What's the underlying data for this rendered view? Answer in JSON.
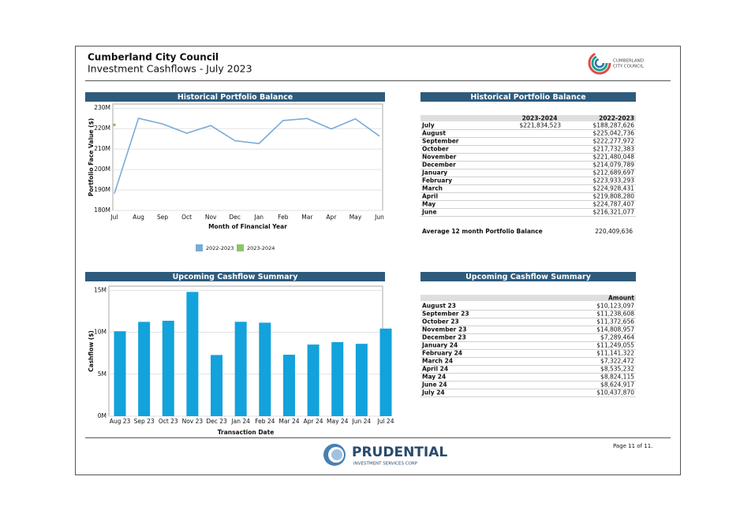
{
  "header": {
    "title": "Cumberland City Council",
    "subtitle": "Investment Cashflows - July 2023",
    "logo_line1": "CUMBERLAND",
    "logo_line2": "CITY COUNCIL"
  },
  "chart_data": [
    {
      "type": "line",
      "title": "Historical Portfolio Balance",
      "y_label": "Portfolio Face Value ($)",
      "x_label": "Month of Financial Year",
      "categories": [
        "Jul",
        "Aug",
        "Sep",
        "Oct",
        "Nov",
        "Dec",
        "Jan",
        "Feb",
        "Mar",
        "Apr",
        "May",
        "Jun"
      ],
      "series": [
        {
          "name": "2022-2023",
          "color": "#7aaad8",
          "values": [
            188287626,
            225042736,
            222277972,
            217732383,
            221480048,
            214079789,
            212689697,
            223933293,
            224928431,
            219808280,
            224787407,
            216321077
          ]
        },
        {
          "name": "2023-2024",
          "color": "#8cc46a",
          "values": [
            221834523,
            null,
            null,
            null,
            null,
            null,
            null,
            null,
            null,
            null,
            null,
            null
          ]
        }
      ],
      "ylim": [
        180000000,
        232000000
      ],
      "yticks": [
        {
          "value": 180000000,
          "label": "180M"
        },
        {
          "value": 190000000,
          "label": "190M"
        },
        {
          "value": 200000000,
          "label": "200M"
        },
        {
          "value": 210000000,
          "label": "210M"
        },
        {
          "value": 220000000,
          "label": "220M"
        },
        {
          "value": 230000000,
          "label": "230M"
        }
      ],
      "grid": true,
      "legend": "bottom"
    },
    {
      "type": "bar",
      "title": "Upcoming Cashflow Summary",
      "y_label": "Cashflow ($)",
      "x_label": "Transaction Date",
      "categories": [
        "Aug 23",
        "Sep 23",
        "Oct 23",
        "Nov 23",
        "Dec 23",
        "Jan 24",
        "Feb 24",
        "Mar 24",
        "Apr 24",
        "May 24",
        "Jun 24",
        "Jul 24"
      ],
      "values": [
        10123097,
        11238608,
        11372656,
        14808957,
        7289464,
        11249055,
        11141322,
        7322472,
        8535232,
        8824115,
        8624917,
        10437870
      ],
      "color": "#12a2dc",
      "ylim": [
        0,
        15500000
      ],
      "yticks": [
        {
          "value": 0,
          "label": "0M"
        },
        {
          "value": 5000000,
          "label": "5M"
        },
        {
          "value": 10000000,
          "label": "10M"
        },
        {
          "value": 15000000,
          "label": "15M"
        }
      ],
      "grid": true
    }
  ],
  "portfolio_table": {
    "title": "Historical Portfolio Balance",
    "col_current": "2023-2024",
    "col_previous": "2022-2023",
    "rows": [
      {
        "label": "July",
        "current": "$221,834,523",
        "previous": "$188,287,626"
      },
      {
        "label": "August",
        "previous": "$225,042,736"
      },
      {
        "label": "September",
        "previous": "$222,277,972"
      },
      {
        "label": "October",
        "previous": "$217,732,383"
      },
      {
        "label": "November",
        "previous": "$221,480,048"
      },
      {
        "label": "December",
        "previous": "$214,079,789"
      },
      {
        "label": "January",
        "previous": "$212,689,697"
      },
      {
        "label": "February",
        "previous": "$223,933,293"
      },
      {
        "label": "March",
        "previous": "$224,928,431"
      },
      {
        "label": "April",
        "previous": "$219,808,280"
      },
      {
        "label": "May",
        "previous": "$224,787,407"
      },
      {
        "label": "June",
        "previous": "$216,321,077"
      }
    ],
    "average": {
      "label": "Average 12 month Portfolio Balance",
      "value": "220,409,636"
    }
  },
  "cashflow_table": {
    "title": "Upcoming Cashflow Summary",
    "column": "Amount",
    "rows": [
      [
        "August 23",
        "$10,123,097"
      ],
      [
        "September 23",
        "$11,238,608"
      ],
      [
        "October 23",
        "$11,372,656"
      ],
      [
        "November 23",
        "$14,808,957"
      ],
      [
        "December 23",
        "$7,289,464"
      ],
      [
        "January 24",
        "$11,249,055"
      ],
      [
        "February 24",
        "$11,141,322"
      ],
      [
        "March 24",
        "$7,322,472"
      ],
      [
        "April 24",
        "$8,535,232"
      ],
      [
        "May 24",
        "$8,824,115"
      ],
      [
        "June 24",
        "$8,624,917"
      ],
      [
        "July 24",
        "$10,437,870"
      ]
    ]
  },
  "footer": {
    "page": "Page 11 of 11.",
    "brand": "PRUDENTIAL",
    "brand_sub": "INVESTMENT SERVICES CORP"
  }
}
